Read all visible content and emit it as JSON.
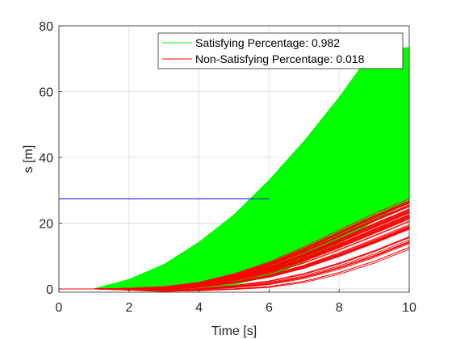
{
  "chart_data": {
    "type": "line",
    "title": "",
    "xlabel": "Time [s]",
    "ylabel": "s [m]",
    "xlim": [
      0,
      10
    ],
    "ylim": [
      -1,
      80
    ],
    "xticks": [
      0,
      2,
      4,
      6,
      8,
      10
    ],
    "yticks": [
      0,
      20,
      40,
      60,
      80
    ],
    "grid": true,
    "legend_position": "top-right",
    "series": [
      {
        "name": "Satisfying Percentage: 0.982",
        "color": "#00ff00",
        "envelope": {
          "x": [
            0,
            1,
            2,
            3,
            4,
            5,
            6,
            7,
            8,
            9,
            10
          ],
          "upper": [
            0,
            0,
            2.9,
            7.5,
            14.3,
            22.7,
            33.2,
            45.1,
            58.4,
            73.1,
            73.4
          ],
          "lower": [
            0,
            0,
            -0.4,
            -0.9,
            -0.4,
            1.2,
            3.8,
            8.2,
            13.8,
            20.7,
            26.9
          ]
        }
      },
      {
        "name": "Non-Satisfying Percentage: 0.018",
        "color": "#ff0000",
        "envelope": {
          "x": [
            0,
            1,
            2,
            3,
            4,
            5,
            6,
            7,
            8,
            9,
            10
          ],
          "upper": [
            0,
            0,
            0.2,
            0.7,
            2.0,
            4.6,
            8.2,
            12.8,
            17.9,
            22.9,
            27.4
          ],
          "lower": [
            0,
            0,
            -0.4,
            -0.9,
            -0.8,
            -0.6,
            -0.3,
            0.9,
            3.2,
            6.4,
            10.6
          ]
        }
      },
      {
        "name": "",
        "color": "#0000ff",
        "x": [
          0,
          6
        ],
        "values": [
          27.4,
          27.4
        ]
      }
    ]
  }
}
